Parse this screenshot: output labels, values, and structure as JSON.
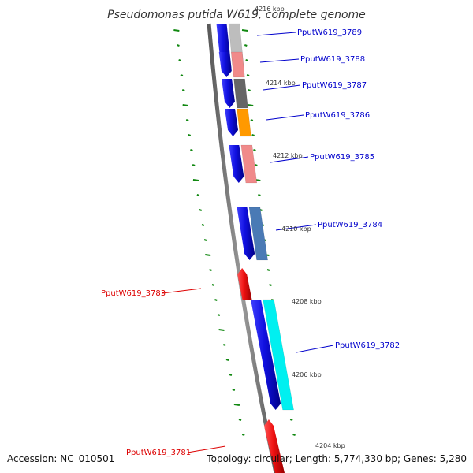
{
  "title": "Pseudomonas putida W619, complete genome",
  "accession_text": "Accession: NC_010501",
  "topology_text": "Topology: circular; Length: 5,774,330 bp; Genes: 5,280",
  "colors": {
    "backbone": "#8a8a8a",
    "forward_strand": "#1010e0",
    "reverse_strand": "#ee1111",
    "forward_label": "#0000cc",
    "reverse_label": "#dd0000",
    "tick": "#118811",
    "kbp_text": "#333333"
  },
  "scale_labels": [
    "4216 kbp",
    "4214 kbp",
    "4212 kbp",
    "4210 kbp",
    "4208 kbp",
    "4206 kbp",
    "4204 kbp"
  ],
  "genes": [
    {
      "id": "PputW619_3789",
      "strand": "forward",
      "cog_color": "#bdbdbd"
    },
    {
      "id": "PputW619_3788",
      "strand": "forward",
      "cog_color": "#f08a8a"
    },
    {
      "id": "PputW619_3787",
      "strand": "forward",
      "cog_color": "#666666"
    },
    {
      "id": "PputW619_3786",
      "strand": "forward",
      "cog_color": "#ff9900"
    },
    {
      "id": "PputW619_3785",
      "strand": "forward",
      "cog_color": "#f08a8a"
    },
    {
      "id": "PputW619_3784",
      "strand": "forward",
      "cog_color": "#4a7ab5"
    },
    {
      "id": "PputW619_3783",
      "strand": "reverse",
      "cog_color": ""
    },
    {
      "id": "PputW619_3782",
      "strand": "forward",
      "cog_color": "#00f0f0"
    },
    {
      "id": "PputW619_3781",
      "strand": "reverse",
      "cog_color": ""
    }
  ]
}
